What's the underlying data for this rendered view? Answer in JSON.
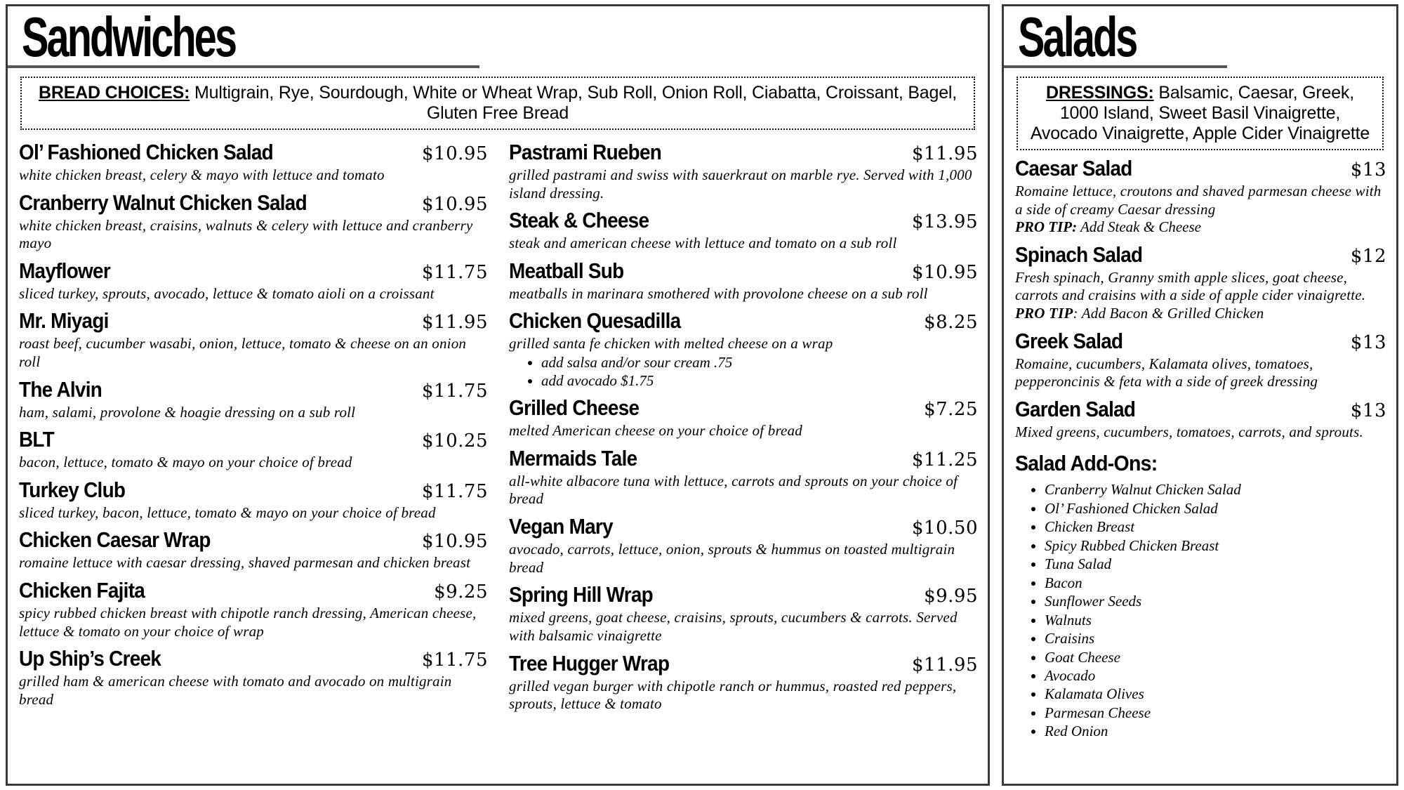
{
  "sandwiches": {
    "title": "Sandwiches",
    "note_label": "BREAD CHOICES:",
    "note_text": " Multigrain, Rye, Sourdough, White or Wheat Wrap, Sub Roll, Onion Roll, Ciabatta, Croissant, Bagel, Gluten Free Bread",
    "col1": [
      {
        "name": "Ol’ Fashioned Chicken Salad",
        "price": "$10.95",
        "desc": "white chicken breast, celery & mayo with lettuce and tomato"
      },
      {
        "name": "Cranberry Walnut Chicken Salad",
        "price": "$10.95",
        "desc": "white chicken breast, craisins, walnuts & celery with lettuce and cranberry mayo"
      },
      {
        "name": "Mayflower",
        "price": "$11.75",
        "desc": "sliced turkey, sprouts, avocado, lettuce & tomato aioli on a croissant"
      },
      {
        "name": "Mr. Miyagi",
        "price": "$11.95",
        "desc": "roast beef, cucumber wasabi, onion, lettuce, tomato & cheese on an onion roll"
      },
      {
        "name": "The Alvin",
        "price": "$11.75",
        "desc": "ham, salami, provolone & hoagie dressing on a sub roll"
      },
      {
        "name": "BLT",
        "price": "$10.25",
        "desc": "bacon, lettuce, tomato & mayo on your choice of bread"
      },
      {
        "name": "Turkey Club",
        "price": "$11.75",
        "desc": "sliced turkey, bacon, lettuce, tomato & mayo on your choice of bread"
      },
      {
        "name": "Chicken Caesar Wrap",
        "price": "$10.95",
        "desc": "romaine lettuce with caesar dressing, shaved parmesan and chicken breast"
      },
      {
        "name": "Chicken Fajita",
        "price": "$9.25",
        "desc": "spicy rubbed chicken breast with chipotle ranch dressing, American cheese, lettuce & tomato on your choice of wrap"
      },
      {
        "name": "Up Ship’s Creek",
        "price": "$11.75",
        "desc": "grilled ham & american cheese with tomato and avocado on multigrain bread"
      }
    ],
    "col2": [
      {
        "name": "Pastrami Rueben",
        "price": "$11.95",
        "desc": "grilled pastrami and swiss with sauerkraut on marble rye. Served with 1,000 island dressing."
      },
      {
        "name": "Steak & Cheese",
        "price": "$13.95",
        "desc": "steak and american cheese with lettuce and tomato on a sub roll"
      },
      {
        "name": "Meatball Sub",
        "price": "$10.95",
        "desc": "meatballs in marinara smothered with provolone cheese on a sub roll"
      },
      {
        "name": "Chicken Quesadilla",
        "price": "$8.25",
        "desc": "grilled santa fe chicken with melted cheese on a wrap",
        "extras": [
          "add salsa and/or sour cream .75",
          "add avocado $1.75"
        ]
      },
      {
        "name": "Grilled Cheese",
        "price": "$7.25",
        "desc": "melted American cheese on your choice of bread"
      },
      {
        "name": "Mermaids Tale",
        "price": "$11.25",
        "desc": "all-white albacore tuna with lettuce, carrots and sprouts on your choice of bread"
      },
      {
        "name": "Vegan Mary",
        "price": "$10.50",
        "desc": "avocado, carrots, lettuce, onion, sprouts & hummus on toasted multigrain bread"
      },
      {
        "name": "Spring Hill Wrap",
        "price": "$9.95",
        "desc": "mixed greens, goat cheese, craisins, sprouts, cucumbers & carrots. Served with balsamic vinaigrette"
      },
      {
        "name": "Tree Hugger Wrap",
        "price": "$11.95",
        "desc": "grilled vegan burger with chipotle ranch or hummus, roasted red peppers, sprouts, lettuce & tomato"
      }
    ]
  },
  "salads": {
    "title": "Salads",
    "note_label": "DRESSINGS:",
    "note_text": " Balsamic, Caesar, Greek, 1000 Island, Sweet Basil Vinaigrette, Avocado Vinaigrette, Apple Cider Vinaigrette",
    "items": [
      {
        "name": "Caesar Salad",
        "price": "$13",
        "desc": "Romaine lettuce, croutons and shaved parmesan cheese with a side of creamy Caesar dressing",
        "tip_label": "PRO TIP:",
        "tip_text": " Add Steak & Cheese"
      },
      {
        "name": "Spinach Salad",
        "price": "$12",
        "desc": "Fresh spinach, Granny smith apple slices, goat cheese, carrots and craisins with a side of apple cider vinaigrette.",
        "tip_label": "PRO TIP",
        "tip_text": ": Add Bacon & Grilled Chicken"
      },
      {
        "name": "Greek Salad",
        "price": "$13",
        "desc": "Romaine, cucumbers, Kalamata olives, tomatoes, pepperoncinis & feta with a side of greek dressing"
      },
      {
        "name": "Garden Salad",
        "price": "$13",
        "desc": "Mixed greens, cucumbers, tomatoes, carrots, and sprouts."
      }
    ],
    "addons_title": "Salad Add-Ons:",
    "addons": [
      "Cranberry Walnut Chicken Salad",
      "Ol’ Fashioned Chicken Salad",
      "Chicken Breast",
      "Spicy Rubbed Chicken Breast",
      "Tuna Salad",
      "Bacon",
      "Sunflower Seeds",
      "Walnuts",
      "Craisins",
      "Goat Cheese",
      "Avocado",
      "Kalamata Olives",
      "Parmesan Cheese",
      "Red Onion"
    ]
  }
}
